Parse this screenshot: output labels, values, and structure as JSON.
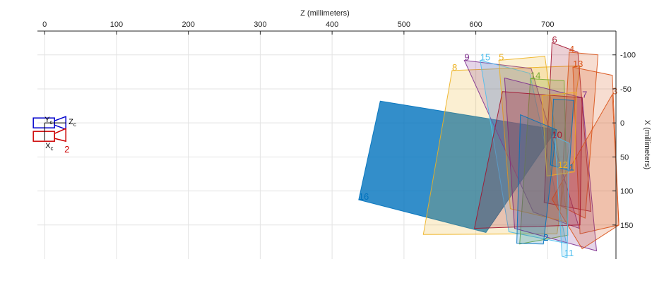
{
  "chart_data": {
    "type": "scatter",
    "subtype": "camera-centric extrinsics view (checkerboard planes)",
    "xlabel": "Z (millimeters)",
    "ylabel": "X (millimeters)",
    "xlim": [
      -10,
      795
    ],
    "ylim": [
      -135,
      200
    ],
    "y_reversed": true,
    "x_ticks": [
      0,
      100,
      200,
      300,
      400,
      500,
      600,
      700
    ],
    "y_ticks": [
      -100,
      -50,
      0,
      50,
      100,
      150
    ],
    "x_tick_labels": [
      "0",
      "100",
      "200",
      "300",
      "400",
      "500",
      "600",
      "700"
    ],
    "y_tick_labels": [
      "-100",
      "-50",
      "0",
      "50",
      "100",
      "150"
    ],
    "x_axis_position": "top",
    "y_axis_position": "right",
    "grid": true,
    "camera": {
      "labels": {
        "zc": "Z",
        "zc_sub": "c",
        "yc": "Y",
        "yc_sub": "c",
        "xc": "X",
        "xc_sub": "c",
        "number": "2"
      },
      "blue_color": "#0000cc",
      "red_color": "#cc0000"
    },
    "series": [
      {
        "label": "16",
        "color": "#0072BD",
        "alpha": 0.8,
        "corners": [
          [
            467,
            -32
          ],
          [
            712,
            10
          ],
          [
            614,
            161
          ],
          [
            437,
            113
          ]
        ],
        "label_at": [
          437,
          113
        ]
      },
      {
        "label": "8",
        "color": "#EDB120",
        "alpha": 0.2,
        "corners": [
          [
            567,
            -77
          ],
          [
            745,
            -84
          ],
          [
            713,
            163
          ],
          [
            527,
            164
          ]
        ],
        "label_at": [
          567,
          -77
        ]
      },
      {
        "label": "9",
        "color": "#7E2F8E",
        "alpha": 0.2,
        "corners": [
          [
            584,
            -92
          ],
          [
            677,
            -80
          ],
          [
            744,
            155
          ],
          [
            680,
            131
          ]
        ],
        "label_at": [
          584,
          -92
        ]
      },
      {
        "label": "15",
        "color": "#4DBEEE",
        "alpha": 0.2,
        "corners": [
          [
            606,
            -92
          ],
          [
            675,
            -73
          ],
          [
            726,
            177
          ],
          [
            646,
            160
          ]
        ],
        "label_at": [
          606,
          -92
        ]
      },
      {
        "label": "5",
        "color": "#EDB120",
        "alpha": 0.2,
        "corners": [
          [
            632,
            -92
          ],
          [
            696,
            -98
          ],
          [
            728,
            146
          ],
          [
            648,
            126
          ]
        ],
        "label_at": [
          632,
          -92
        ]
      },
      {
        "label": "6",
        "color": "#A2142F",
        "alpha": 0.2,
        "corners": [
          [
            706,
            -118
          ],
          [
            742,
            -104
          ],
          [
            760,
            130
          ],
          [
            695,
            117
          ]
        ],
        "label_at": [
          706,
          -118
        ]
      },
      {
        "label": "4",
        "color": "#D95319",
        "alpha": 0.2,
        "corners": [
          [
            730,
            -104
          ],
          [
            770,
            -100
          ],
          [
            752,
            140
          ],
          [
            718,
            122
          ]
        ],
        "label_at": [
          730,
          -104
        ]
      },
      {
        "label": "13",
        "color": "#D95319",
        "alpha": 0.2,
        "corners": [
          [
            735,
            -82
          ],
          [
            790,
            -70
          ],
          [
            799,
            150
          ],
          [
            745,
            163
          ]
        ],
        "label_at": [
          735,
          -82
        ]
      },
      {
        "label": "14",
        "color": "#77AC30",
        "alpha": 0.2,
        "corners": [
          [
            676,
            -65
          ],
          [
            723,
            -62
          ],
          [
            728,
            165
          ],
          [
            661,
            178
          ]
        ],
        "label_at": [
          676,
          -65
        ]
      },
      {
        "label": "7",
        "color": "#7E2F8E",
        "alpha": 0.2,
        "corners": [
          [
            640,
            -66
          ],
          [
            748,
            -37
          ],
          [
            768,
            188
          ],
          [
            654,
            155
          ]
        ],
        "label_at": [
          748,
          -37
        ]
      },
      {
        "label": "3",
        "color": "#D95319",
        "alpha": 0.2,
        "corners": [
          [
            790,
            -42
          ],
          [
            799,
            150
          ],
          [
            748,
            185
          ],
          [
            706,
            112
          ]
        ],
        "label_at": [
          790,
          -42
        ]
      },
      {
        "label": "10",
        "color": "#A2142F",
        "alpha": 0.2,
        "corners": [
          [
            637,
            -46
          ],
          [
            748,
            -37
          ],
          [
            745,
            150
          ],
          [
            598,
            155
          ]
        ],
        "label_at": [
          706,
          22
        ]
      },
      {
        "label": "12",
        "color": "#EDB120",
        "alpha": 0.2,
        "corners": [
          [
            692,
            -40
          ],
          [
            740,
            -45
          ],
          [
            737,
            72
          ],
          [
            699,
            78
          ]
        ],
        "label_at": [
          714,
          66
        ]
      },
      {
        "label": "1",
        "color": "#0072BD",
        "alpha": 0.2,
        "corners": [
          [
            708,
            -35
          ],
          [
            736,
            -33
          ],
          [
            730,
            70
          ],
          [
            704,
            62
          ]
        ],
        "label_at": [
          730,
          70
        ]
      },
      {
        "label": "2",
        "color": "#0072BD",
        "alpha": 0.2,
        "corners": [
          [
            662,
            -12
          ],
          [
            712,
            10
          ],
          [
            694,
            178
          ],
          [
            657,
            177
          ]
        ],
        "label_at": [
          694,
          173
        ]
      },
      {
        "label": "11",
        "color": "#4DBEEE",
        "alpha": 0.2,
        "corners": [
          [
            710,
            20
          ],
          [
            730,
            30
          ],
          [
            727,
            198
          ],
          [
            720,
            196
          ]
        ],
        "label_at": [
          723,
          196
        ]
      }
    ]
  }
}
